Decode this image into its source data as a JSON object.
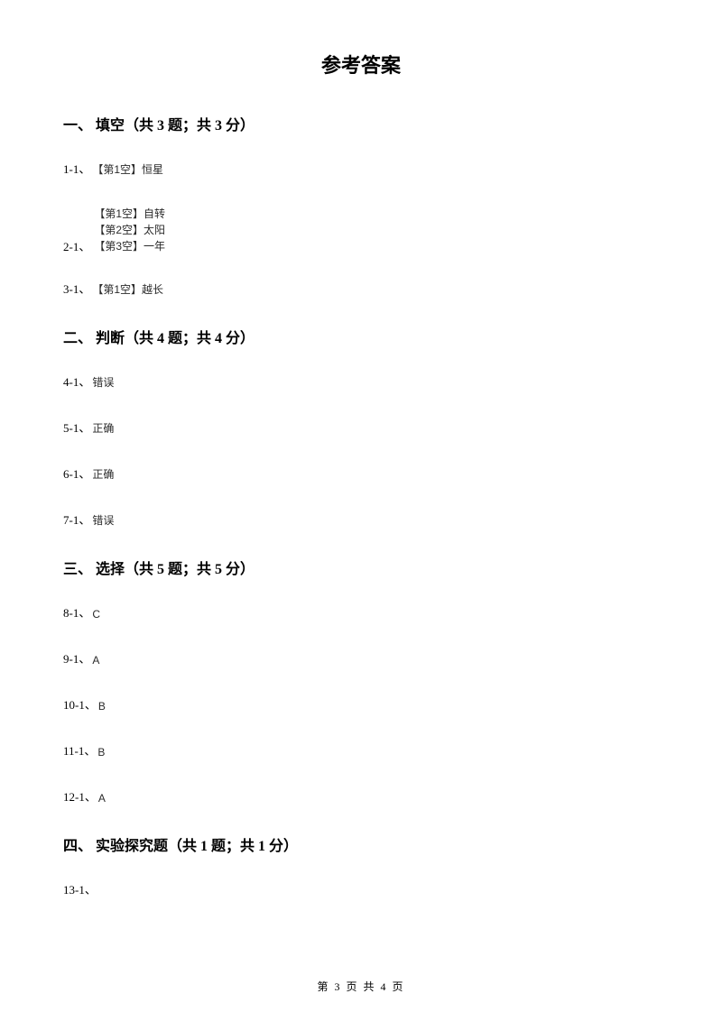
{
  "title": "参考答案",
  "sections": {
    "s1": {
      "heading": "一、 填空（共 3 题；共 3 分）",
      "items": {
        "q1": {
          "label": "1-1、",
          "answer": "【第1空】恒星"
        },
        "q2": {
          "label": "2-1、",
          "lines": [
            "【第1空】自转",
            "【第2空】太阳",
            "【第3空】一年"
          ]
        },
        "q3": {
          "label": "3-1、",
          "answer": "【第1空】越长"
        }
      }
    },
    "s2": {
      "heading": "二、 判断（共 4 题；共 4 分）",
      "items": {
        "q4": {
          "label": "4-1、",
          "answer": "错误"
        },
        "q5": {
          "label": "5-1、",
          "answer": "正确"
        },
        "q6": {
          "label": "6-1、",
          "answer": "正确"
        },
        "q7": {
          "label": "7-1、",
          "answer": "错误"
        }
      }
    },
    "s3": {
      "heading": "三、 选择（共 5 题；共 5 分）",
      "items": {
        "q8": {
          "label": "8-1、",
          "answer": "C"
        },
        "q9": {
          "label": "9-1、",
          "answer": "A"
        },
        "q10": {
          "label": "10-1、",
          "answer": "B"
        },
        "q11": {
          "label": "11-1、",
          "answer": "B"
        },
        "q12": {
          "label": "12-1、",
          "answer": "A"
        }
      }
    },
    "s4": {
      "heading": "四、 实验探究题（共 1 题；共 1 分）",
      "items": {
        "q13": {
          "label": "13-1、",
          "answer": ""
        }
      }
    }
  },
  "footer": "第 3 页 共 4 页"
}
